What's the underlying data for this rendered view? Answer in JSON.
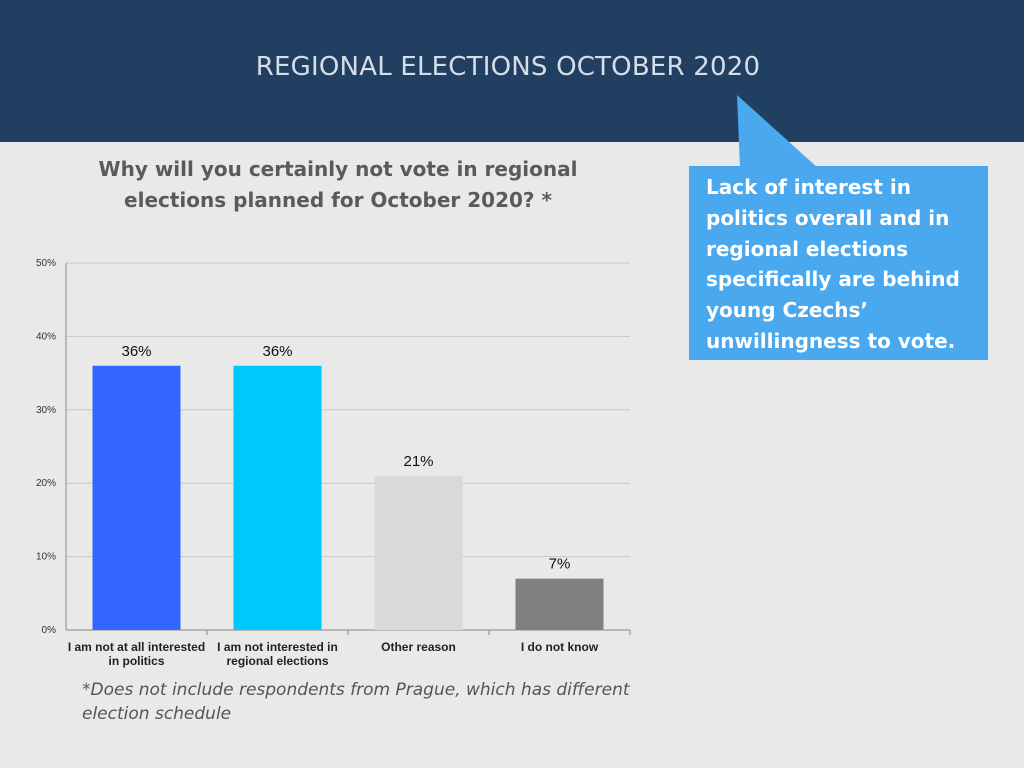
{
  "header": {
    "title": "REGIONAL ELECTIONS OCTOBER 2020"
  },
  "callout": {
    "text": "Lack of interest in politics overall and in regional elections specifically are behind young Czechs’ unwillingness to vote."
  },
  "footnote": "*Does not include respondents from Prague, which has different election schedule",
  "colors": {
    "header_bg": "#213f61",
    "callout_bg": "#4aa8ef",
    "bar_1": "#3366ff",
    "bar_2": "#00c8ff",
    "bar_3": "#d9d9d9",
    "bar_4": "#808080"
  },
  "chart_data": {
    "type": "bar",
    "title": "Why will you certainly not vote in regional elections planned for October 2020? *",
    "categories": [
      "I am not at all interested in politics",
      "I am not interested in regional elections",
      "Other reason",
      "I do not know"
    ],
    "values": [
      36,
      36,
      21,
      7
    ],
    "data_labels": [
      "36%",
      "36%",
      "21%",
      "7%"
    ],
    "ylim": [
      0,
      50
    ],
    "yticks": [
      "0%",
      "10%",
      "20%",
      "30%",
      "40%",
      "50%"
    ],
    "grid": true,
    "legend": "none",
    "xlabel": "",
    "ylabel": ""
  }
}
